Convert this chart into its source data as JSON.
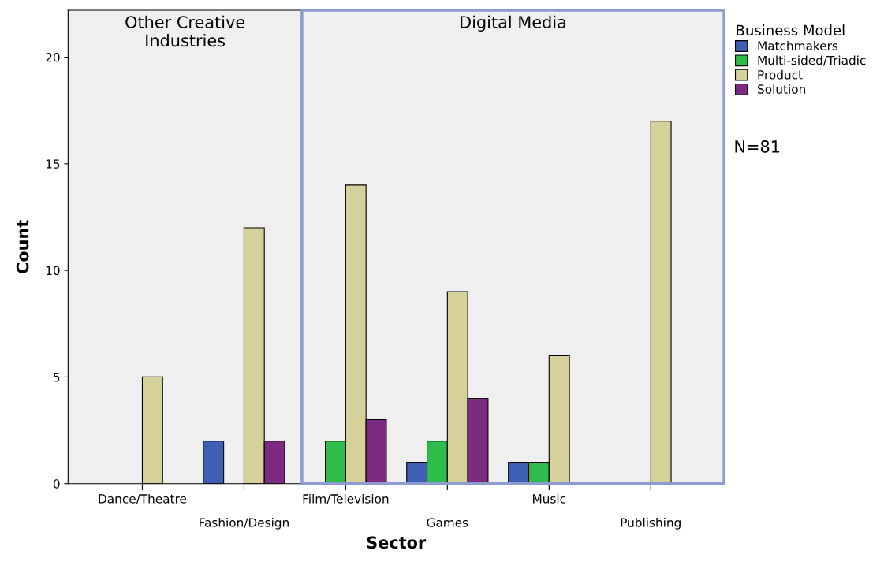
{
  "chart_data": {
    "type": "bar",
    "xlabel": "Sector",
    "ylabel": "Count",
    "legend_title": "Business Model",
    "categories": [
      "Dance/Theatre",
      "Fashion/Design",
      "Film/Television",
      "Games",
      "Music",
      "Publishing"
    ],
    "series": [
      {
        "name": "Matchmakers",
        "color": "#3f5fb5",
        "values": [
          null,
          2,
          null,
          1,
          1,
          null
        ]
      },
      {
        "name": "Multi-sided/Triadic",
        "color": "#2ebd4a",
        "values": [
          null,
          null,
          2,
          2,
          1,
          null
        ]
      },
      {
        "name": "Product",
        "color": "#d6d09a",
        "values": [
          5,
          12,
          14,
          9,
          6,
          17
        ]
      },
      {
        "name": "Solution",
        "color": "#7d2a82",
        "values": [
          null,
          2,
          3,
          4,
          null,
          null
        ]
      }
    ],
    "ylim": [
      0,
      22.2
    ],
    "yticks": [
      0,
      5,
      10,
      15,
      20
    ],
    "grid": false,
    "legend": "top right",
    "annotations": [
      "Other Creative\nIndustries",
      "Digital Media",
      "N=81"
    ]
  }
}
